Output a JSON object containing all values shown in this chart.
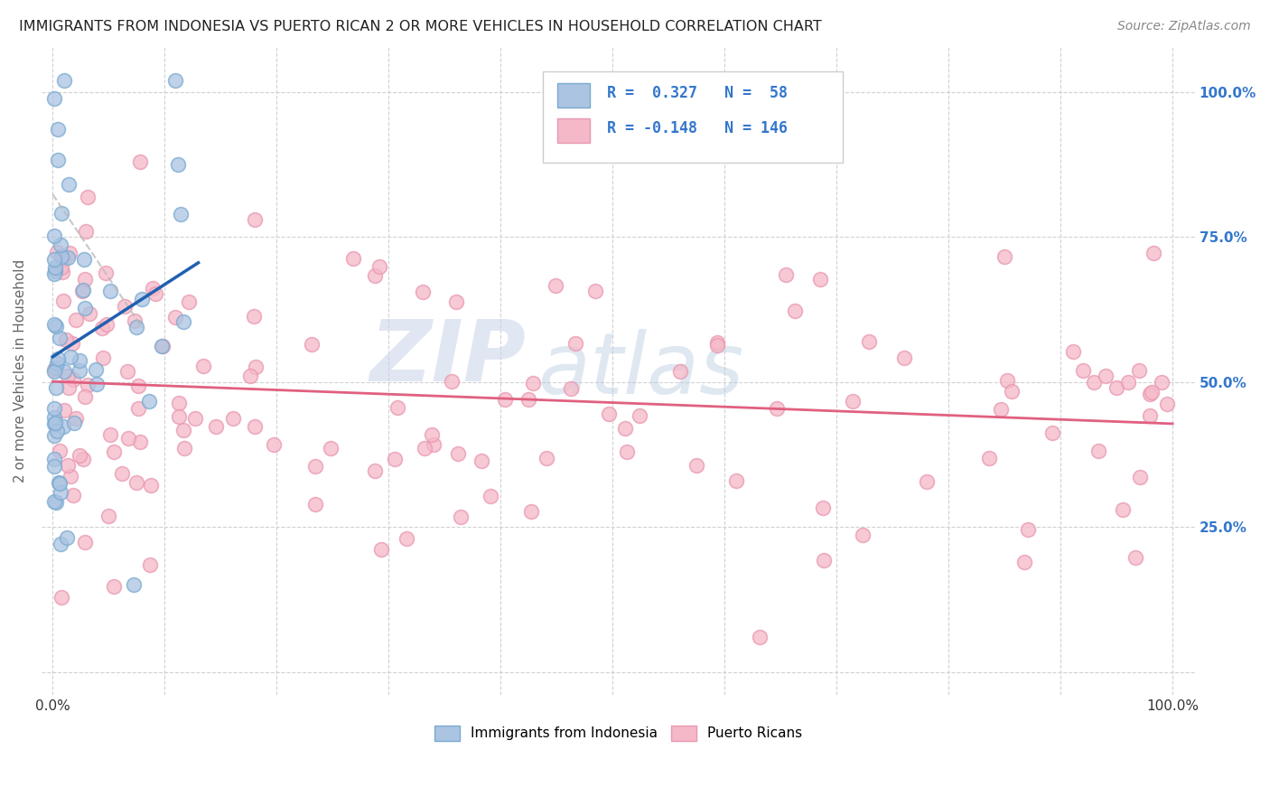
{
  "title": "IMMIGRANTS FROM INDONESIA VS PUERTO RICAN 2 OR MORE VEHICLES IN HOUSEHOLD CORRELATION CHART",
  "source": "Source: ZipAtlas.com",
  "ylabel": "2 or more Vehicles in Household",
  "watermark_zip": "ZIP",
  "watermark_atlas": "atlas",
  "blue_R": 0.327,
  "blue_N": 58,
  "pink_R": -0.148,
  "pink_N": 146,
  "blue_fill": "#aac4e2",
  "blue_edge": "#7aaad0",
  "blue_line_color": "#2060b0",
  "pink_fill": "#f5b8c8",
  "pink_edge": "#e898b0",
  "pink_line_color": "#e06080",
  "grid_color": "#cccccc",
  "background_color": "#ffffff",
  "right_tick_color": "#3377cc",
  "title_color": "#222222",
  "source_color": "#888888",
  "ylabel_color": "#666666",
  "legend_border_color": "#cccccc"
}
